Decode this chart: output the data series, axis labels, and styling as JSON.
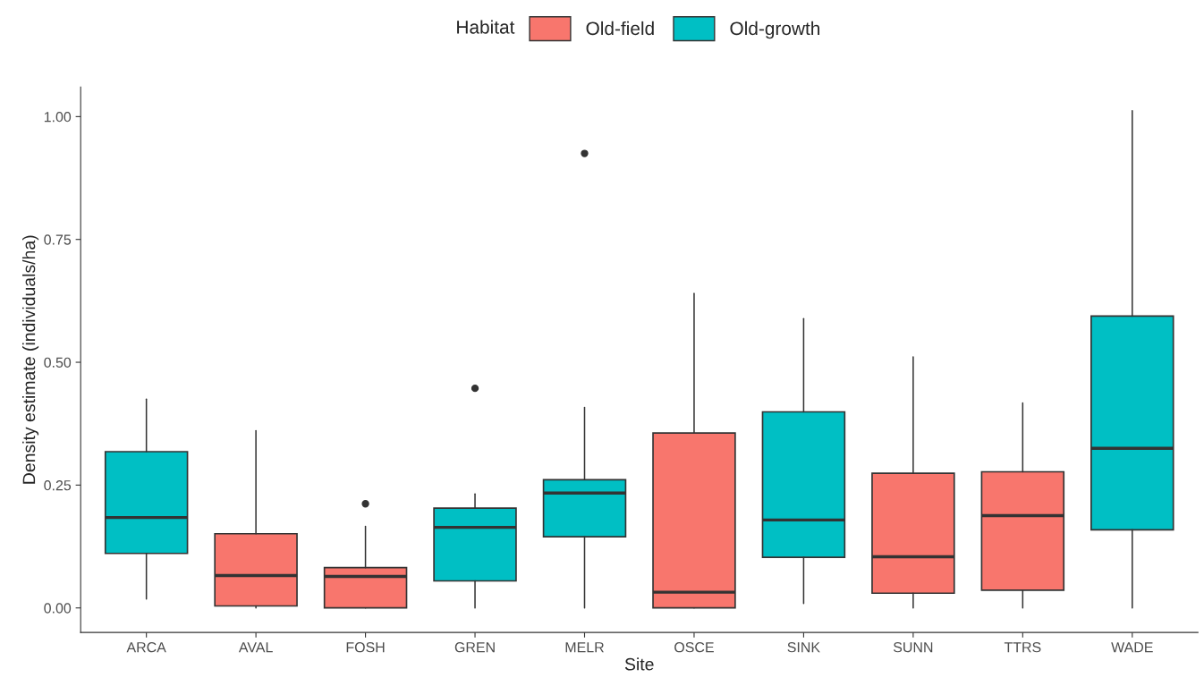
{
  "chart_data": {
    "type": "box",
    "xlabel": "Site",
    "ylabel": "Density estimate (individuals/ha)",
    "legend_title": "Habitat",
    "legend": "top",
    "grid": false,
    "categories": [
      "ARCA",
      "AVAL",
      "FOSH",
      "GREN",
      "MELR",
      "OSCE",
      "SINK",
      "SUNN",
      "TTRS",
      "WADE"
    ],
    "ylim": [
      -0.05,
      1.06
    ],
    "yticks": [
      {
        "value": 0,
        "label": "0.00"
      },
      {
        "value": 0.25,
        "label": "0.25"
      },
      {
        "value": 0.5,
        "label": "0.50"
      },
      {
        "value": 0.75,
        "label": "0.75"
      },
      {
        "value": 1,
        "label": "1.00"
      }
    ],
    "series": [
      {
        "name": "Old-field",
        "color": "#f8766d",
        "boxes": [
          null,
          {
            "low": 0.0,
            "q1": 0.004,
            "median": 0.066,
            "q3": 0.151,
            "high": 0.361
          },
          {
            "low": 0.0,
            "q1": 0.0,
            "median": 0.064,
            "q3": 0.082,
            "high": 0.166,
            "outliers": [
              0.212
            ]
          },
          null,
          null,
          {
            "low": 0.0,
            "q1": 0.0,
            "median": 0.032,
            "q3": 0.356,
            "high": 0.64
          },
          null,
          {
            "low": 0.0,
            "q1": 0.03,
            "median": 0.104,
            "q3": 0.274,
            "high": 0.511
          },
          {
            "low": 0.0,
            "q1": 0.036,
            "median": 0.188,
            "q3": 0.277,
            "high": 0.417
          },
          null
        ]
      },
      {
        "name": "Old-growth",
        "color": "#00bfc4",
        "boxes": [
          {
            "low": 0.018,
            "q1": 0.111,
            "median": 0.184,
            "q3": 0.318,
            "high": 0.425
          },
          null,
          null,
          {
            "low": 0.0,
            "q1": 0.055,
            "median": 0.164,
            "q3": 0.203,
            "high": 0.232,
            "outliers": [
              0.447
            ]
          },
          {
            "low": 0.0,
            "q1": 0.145,
            "median": 0.234,
            "q3": 0.261,
            "high": 0.408,
            "outliers": [
              0.925
            ]
          },
          null,
          {
            "low": 0.009,
            "q1": 0.103,
            "median": 0.179,
            "q3": 0.399,
            "high": 0.589
          },
          null,
          null,
          {
            "low": 0.0,
            "q1": 0.159,
            "median": 0.325,
            "q3": 0.594,
            "high": 1.012
          }
        ]
      }
    ]
  }
}
